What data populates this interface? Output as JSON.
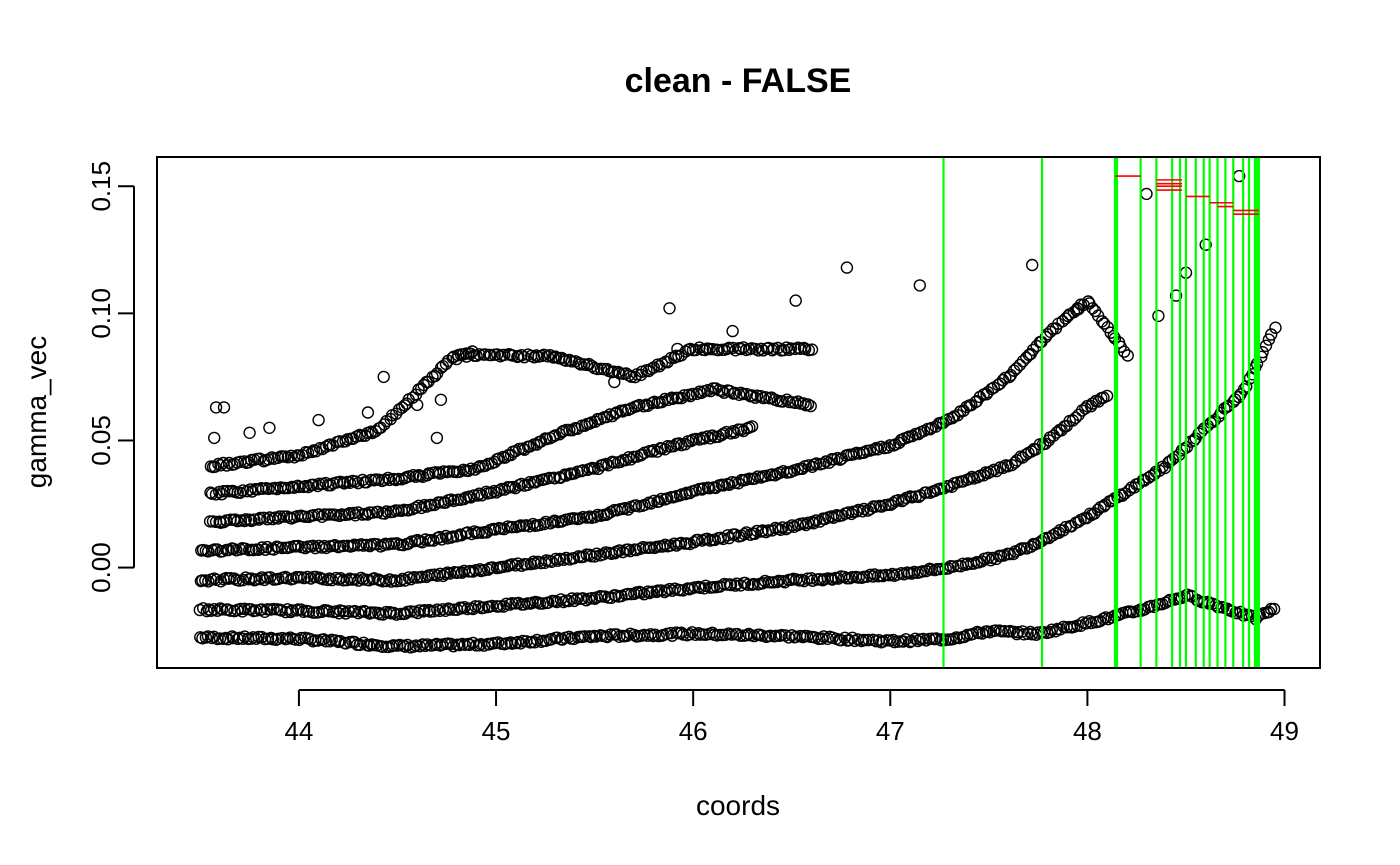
{
  "chart_data": {
    "type": "scatter",
    "title": "clean - FALSE",
    "xlabel": "coords",
    "ylabel": "gamma_vec",
    "xlim": [
      43.28,
      49.18
    ],
    "ylim": [
      -0.0395,
      0.1615
    ],
    "x_ticks": [
      44,
      45,
      46,
      47,
      48,
      49
    ],
    "x_tick_labels": [
      "44",
      "45",
      "46",
      "47",
      "48",
      "49"
    ],
    "y_ticks": [
      0.0,
      0.05,
      0.1,
      0.15
    ],
    "y_tick_labels": [
      "0.00",
      "0.05",
      "0.10",
      "0.15"
    ],
    "grid": false,
    "legend": "none",
    "colors": {
      "points": "#000000",
      "vlines": "#00ff00",
      "segments": "#ff0000",
      "frame": "#000000"
    },
    "point_style": "open-circle",
    "scatter_bands": [
      {
        "band": 1,
        "knots": [
          [
            43.5,
            -0.0275
          ],
          [
            44.0,
            -0.028
          ],
          [
            44.5,
            -0.031
          ],
          [
            45.0,
            -0.03
          ],
          [
            45.5,
            -0.027
          ],
          [
            46.0,
            -0.026
          ],
          [
            46.5,
            -0.027
          ],
          [
            47.0,
            -0.029
          ],
          [
            47.3,
            -0.028
          ],
          [
            47.5,
            -0.025
          ],
          [
            47.75,
            -0.026
          ],
          [
            48.1,
            -0.02
          ],
          [
            48.3,
            -0.016
          ],
          [
            48.5,
            -0.011
          ],
          [
            48.7,
            -0.016
          ],
          [
            48.85,
            -0.02
          ],
          [
            48.95,
            -0.016
          ]
        ]
      },
      {
        "band": 2,
        "knots": [
          [
            43.5,
            -0.0165
          ],
          [
            44.0,
            -0.017
          ],
          [
            44.5,
            -0.018
          ],
          [
            45.0,
            -0.015
          ],
          [
            45.5,
            -0.012
          ],
          [
            46.0,
            -0.008
          ],
          [
            46.5,
            -0.005
          ],
          [
            47.0,
            -0.003
          ],
          [
            47.3,
            0.0
          ],
          [
            47.6,
            0.005
          ],
          [
            47.75,
            0.01
          ],
          [
            48.0,
            0.02
          ],
          [
            48.2,
            0.03
          ],
          [
            48.4,
            0.04
          ],
          [
            48.6,
            0.055
          ],
          [
            48.8,
            0.07
          ],
          [
            48.95,
            0.094
          ]
        ]
      },
      {
        "band": 3,
        "knots": [
          [
            43.5,
            -0.005
          ],
          [
            44.0,
            -0.004
          ],
          [
            44.5,
            -0.005
          ],
          [
            45.0,
            0.0
          ],
          [
            45.5,
            0.005
          ],
          [
            46.0,
            0.01
          ],
          [
            46.5,
            0.016
          ],
          [
            47.0,
            0.025
          ],
          [
            47.3,
            0.032
          ],
          [
            47.6,
            0.04
          ],
          [
            47.8,
            0.05
          ],
          [
            48.0,
            0.063
          ],
          [
            48.1,
            0.068
          ]
        ]
      },
      {
        "band": 4,
        "knots": [
          [
            43.5,
            0.0065
          ],
          [
            44.0,
            0.008
          ],
          [
            44.5,
            0.009
          ],
          [
            45.0,
            0.015
          ],
          [
            45.5,
            0.02
          ],
          [
            46.0,
            0.03
          ],
          [
            46.5,
            0.038
          ],
          [
            47.0,
            0.048
          ],
          [
            47.3,
            0.058
          ],
          [
            47.6,
            0.075
          ],
          [
            47.8,
            0.092
          ],
          [
            48.0,
            0.105
          ],
          [
            48.2,
            0.084
          ]
        ]
      },
      {
        "band": 5,
        "knots": [
          [
            43.55,
            0.018
          ],
          [
            44.0,
            0.02
          ],
          [
            44.5,
            0.022
          ],
          [
            45.0,
            0.03
          ],
          [
            45.5,
            0.039
          ],
          [
            45.9,
            0.048
          ],
          [
            46.3,
            0.055
          ]
        ]
      },
      {
        "band": 6,
        "knots": [
          [
            43.55,
            0.029
          ],
          [
            44.0,
            0.032
          ],
          [
            44.5,
            0.035
          ],
          [
            44.9,
            0.039
          ],
          [
            45.3,
            0.052
          ],
          [
            45.7,
            0.063
          ],
          [
            46.1,
            0.07
          ],
          [
            46.6,
            0.064
          ]
        ]
      },
      {
        "band": 7,
        "knots": [
          [
            43.55,
            0.04
          ],
          [
            44.0,
            0.044
          ],
          [
            44.4,
            0.054
          ],
          [
            44.8,
            0.084
          ],
          [
            45.3,
            0.083
          ],
          [
            45.7,
            0.075
          ],
          [
            46.0,
            0.086
          ],
          [
            46.6,
            0.086
          ]
        ]
      }
    ],
    "scatter_outliers": [
      [
        43.57,
        0.051
      ],
      [
        43.58,
        0.063
      ],
      [
        43.62,
        0.063
      ],
      [
        43.75,
        0.053
      ],
      [
        43.85,
        0.055
      ],
      [
        44.1,
        0.058
      ],
      [
        44.35,
        0.061
      ],
      [
        44.43,
        0.075
      ],
      [
        44.6,
        0.064
      ],
      [
        44.7,
        0.051
      ],
      [
        44.72,
        0.066
      ],
      [
        44.8,
        0.082
      ],
      [
        44.85,
        0.083
      ],
      [
        44.88,
        0.085
      ],
      [
        45.3,
        0.083
      ],
      [
        45.6,
        0.073
      ],
      [
        45.88,
        0.102
      ],
      [
        45.92,
        0.086
      ],
      [
        46.2,
        0.093
      ],
      [
        46.52,
        0.105
      ],
      [
        46.78,
        0.118
      ],
      [
        47.15,
        0.111
      ],
      [
        47.72,
        0.119
      ],
      [
        47.95,
        0.102
      ],
      [
        48.3,
        0.147
      ],
      [
        48.36,
        0.099
      ],
      [
        48.45,
        0.107
      ],
      [
        48.5,
        0.116
      ],
      [
        48.6,
        0.127
      ],
      [
        48.77,
        0.154
      ]
    ],
    "vertical_lines_x": [
      47.27,
      47.77,
      48.14,
      48.15,
      48.27,
      48.35,
      48.43,
      48.47,
      48.5,
      48.55,
      48.59,
      48.62,
      48.66,
      48.7,
      48.74,
      48.79,
      48.82,
      48.85,
      48.86,
      48.87
    ],
    "red_segments": [
      [
        48.14,
        48.27,
        0.154
      ],
      [
        48.35,
        48.48,
        0.1525
      ],
      [
        48.35,
        48.48,
        0.151
      ],
      [
        48.35,
        48.48,
        0.15
      ],
      [
        48.35,
        48.48,
        0.1485
      ],
      [
        48.5,
        48.62,
        0.146
      ],
      [
        48.62,
        48.74,
        0.1435
      ],
      [
        48.66,
        48.74,
        0.142
      ],
      [
        48.74,
        48.87,
        0.1405
      ],
      [
        48.74,
        48.87,
        0.139
      ]
    ]
  }
}
